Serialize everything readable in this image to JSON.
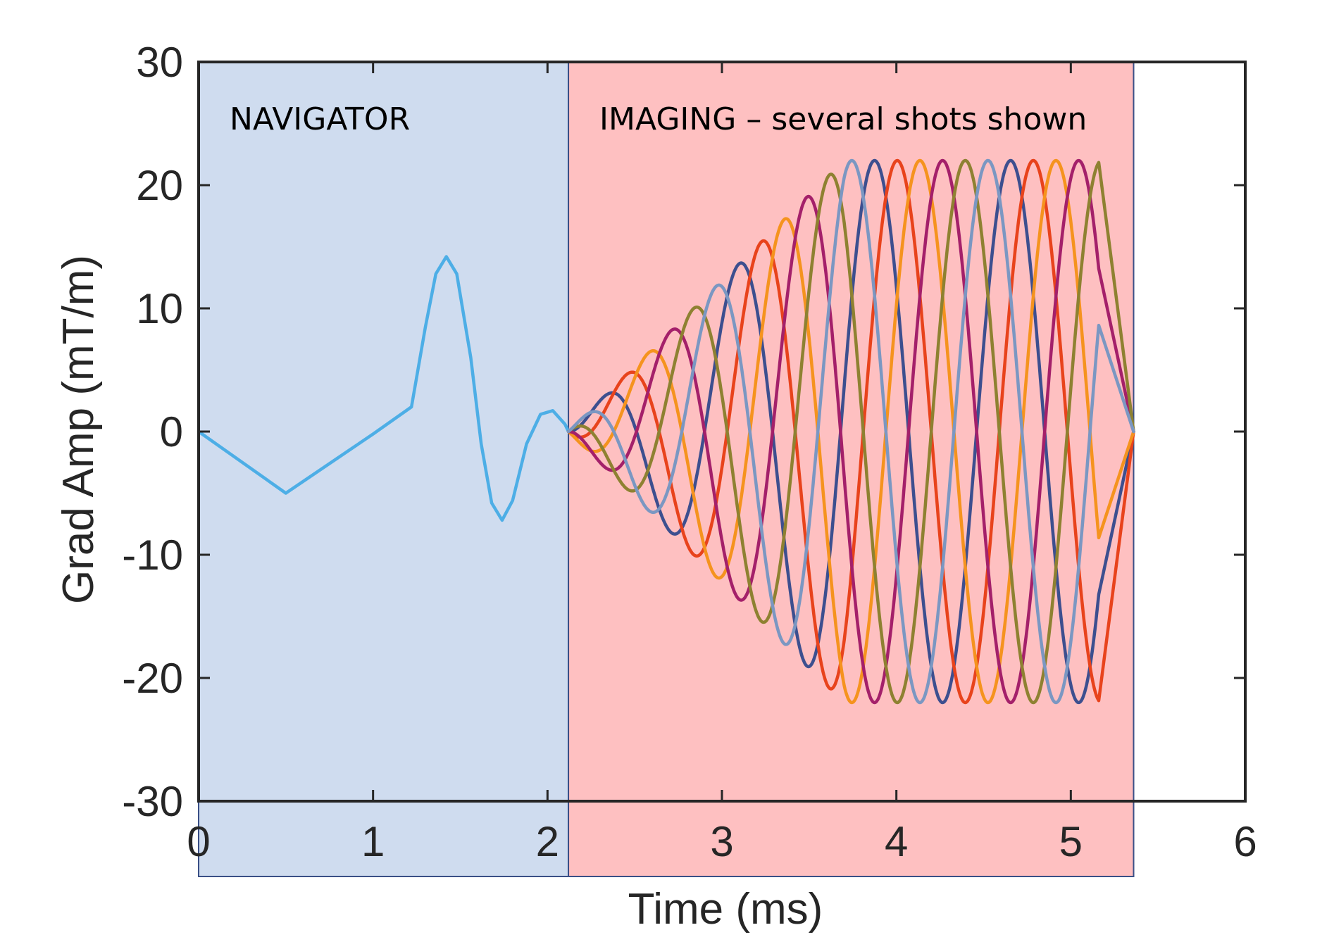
{
  "chart_data": {
    "type": "line",
    "xlabel": "Time (ms)",
    "ylabel": "Grad Amp (mT/m)",
    "xlim": [
      0,
      6
    ],
    "ylim": [
      -30,
      30
    ],
    "xticks": [
      0,
      1,
      2,
      3,
      4,
      5,
      6
    ],
    "yticks": [
      -30,
      -20,
      -10,
      0,
      10,
      20,
      30
    ],
    "xtick_labels": [
      "0",
      "1",
      "2",
      "3",
      "4",
      "5",
      "6"
    ],
    "ytick_labels": [
      "-30",
      "-20",
      "-10",
      "0",
      "10",
      "20",
      "30"
    ],
    "grid": false,
    "legend": "none",
    "regions": [
      {
        "label": "NAVIGATOR",
        "x_range": [
          0,
          2.12
        ],
        "color": "#cfdcef"
      },
      {
        "label": "IMAGING – several shots shown",
        "x_range": [
          2.12,
          5.36
        ],
        "color": "#fec0c1"
      }
    ],
    "navigator_series": {
      "color": "#4daee6",
      "points": [
        [
          0,
          0
        ],
        [
          0.5,
          -5.0
        ],
        [
          1.0,
          -0.2
        ],
        [
          1.22,
          2.0
        ],
        [
          1.3,
          8.5
        ],
        [
          1.36,
          12.8
        ],
        [
          1.42,
          14.2
        ],
        [
          1.48,
          12.8
        ],
        [
          1.56,
          6.0
        ],
        [
          1.62,
          -1.0
        ],
        [
          1.68,
          -5.8
        ],
        [
          1.74,
          -7.2
        ],
        [
          1.8,
          -5.6
        ],
        [
          1.88,
          -1.0
        ],
        [
          1.96,
          1.4
        ],
        [
          2.03,
          1.7
        ],
        [
          2.1,
          0.6
        ],
        [
          2.12,
          0
        ]
      ]
    },
    "imaging_series": {
      "start": 2.12,
      "ramp_end": 3.7,
      "flat_end": 5.16,
      "end": 5.36,
      "max_amp": 22,
      "period": 0.78,
      "shots": [
        {
          "color": "#3d4f8f",
          "phase": 0.0
        },
        {
          "color": "#e8431c",
          "phase": 0.13
        },
        {
          "color": "#f5931e",
          "phase": 0.26
        },
        {
          "color": "#a4206a",
          "phase": 0.39
        },
        {
          "color": "#8e8131",
          "phase": 0.52
        },
        {
          "color": "#7b97c2",
          "phase": 0.65
        }
      ]
    }
  }
}
